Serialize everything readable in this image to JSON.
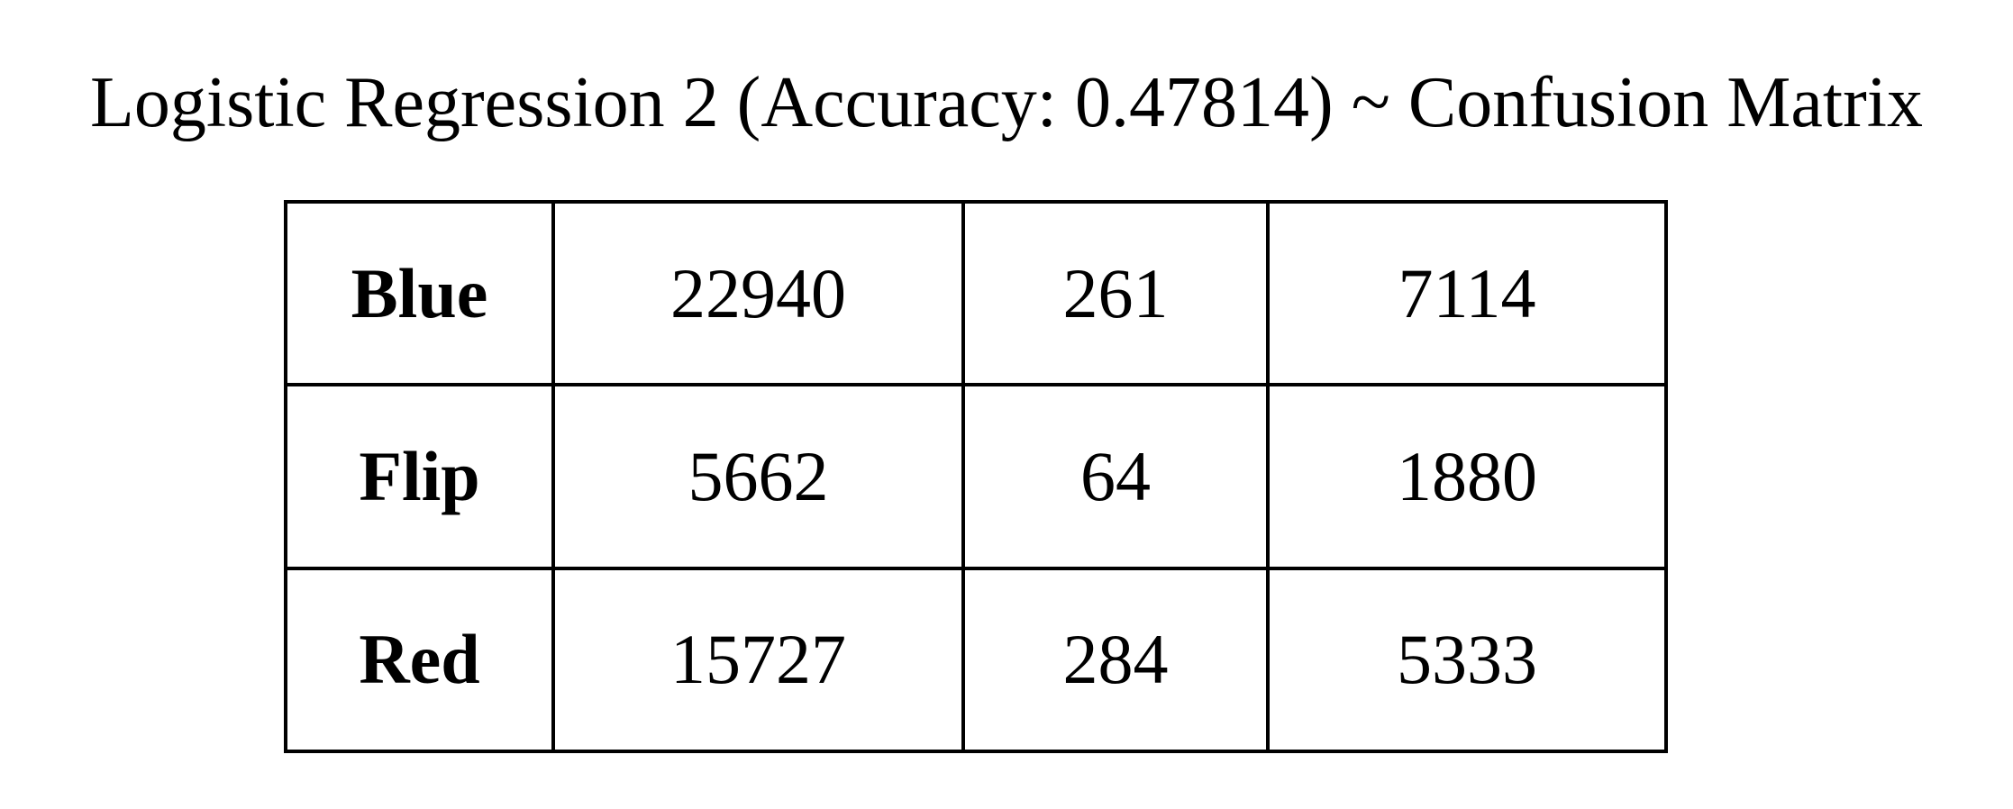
{
  "chart_data": {
    "type": "table",
    "title": "Logistic Regression 2 (Accuracy: 0.47814) ~ Confusion Matrix",
    "rows": [
      {
        "label": "Blue",
        "values": [
          "22940",
          "261",
          "7114"
        ]
      },
      {
        "label": "Flip",
        "values": [
          "5662",
          "64",
          "1880"
        ]
      },
      {
        "label": "Red",
        "values": [
          "15727",
          "284",
          "5333"
        ]
      }
    ]
  }
}
